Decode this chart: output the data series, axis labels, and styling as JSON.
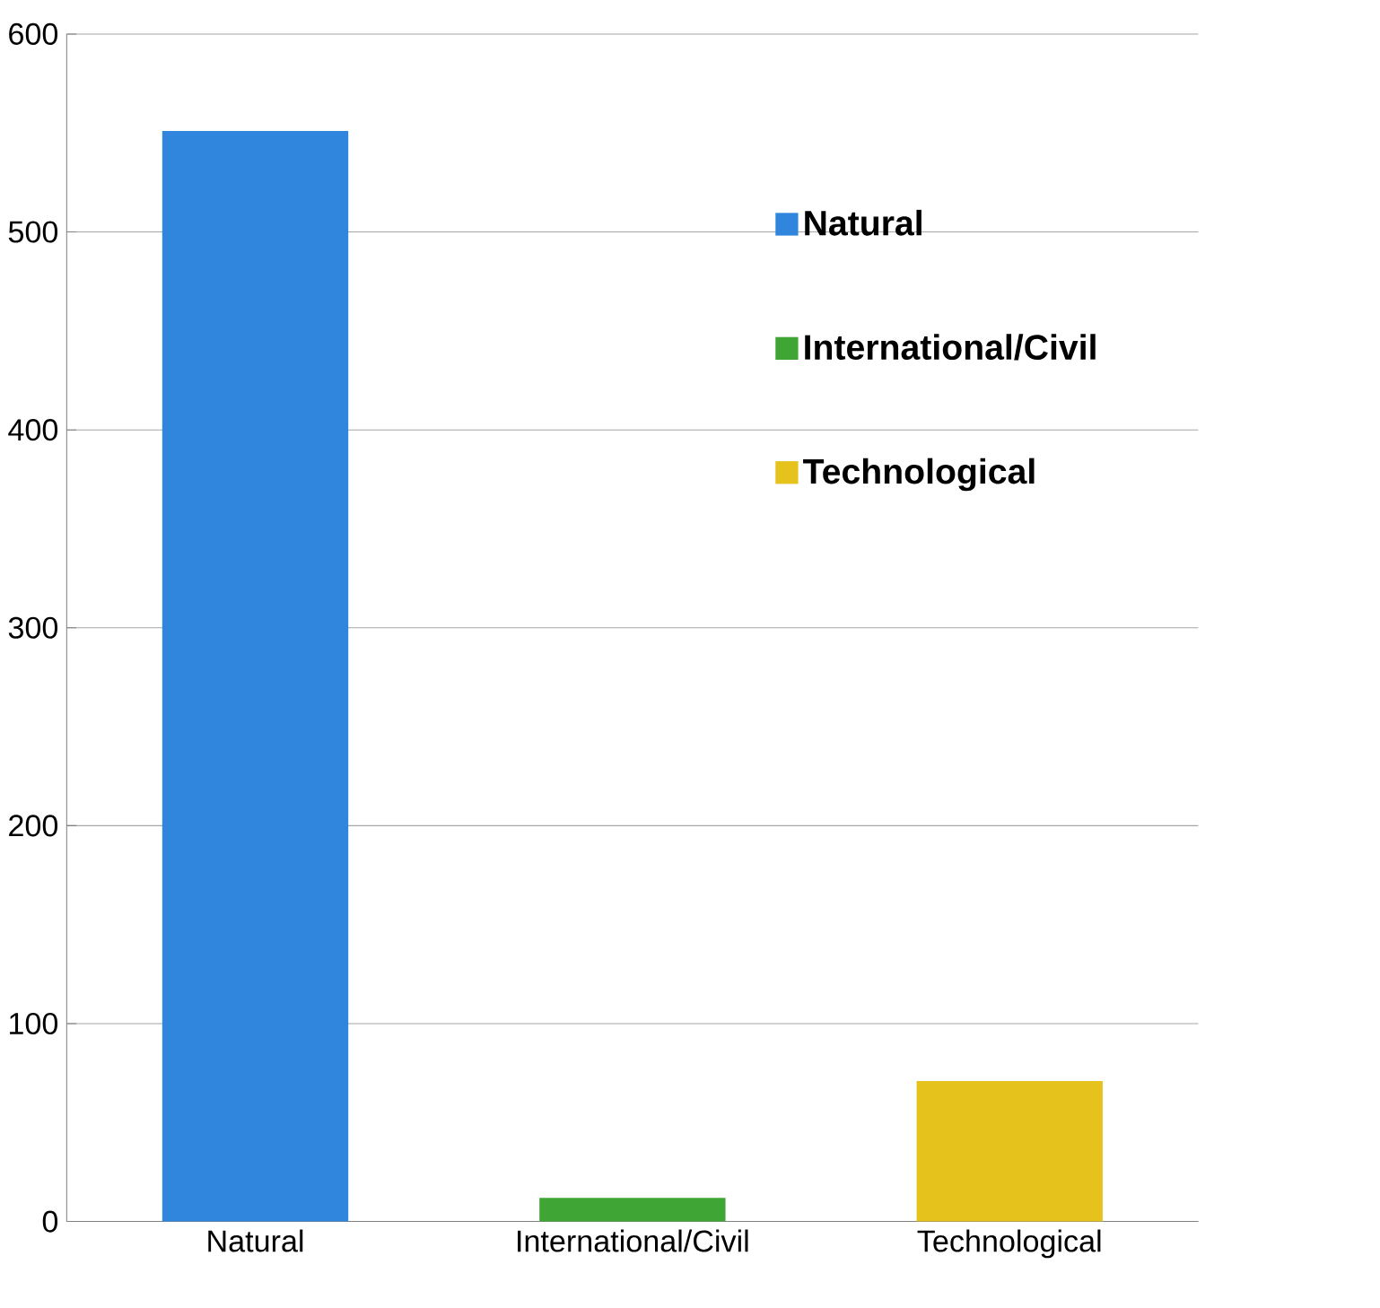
{
  "chart_data": {
    "type": "bar",
    "categories": [
      "Natural",
      "International/Civil",
      "Technological"
    ],
    "series": [
      {
        "name": "Natural",
        "color": "#2f86dc",
        "values": [
          551,
          null,
          null
        ]
      },
      {
        "name": "International/Civil",
        "color": "#3fa535",
        "values": [
          null,
          12,
          null
        ]
      },
      {
        "name": "Technological",
        "color": "#e6c21c",
        "values": [
          null,
          null,
          71
        ]
      }
    ],
    "ylim": [
      0,
      600
    ],
    "yticks": [
      0,
      100,
      200,
      300,
      400,
      500,
      600
    ],
    "grid": "y",
    "legend": "right"
  }
}
